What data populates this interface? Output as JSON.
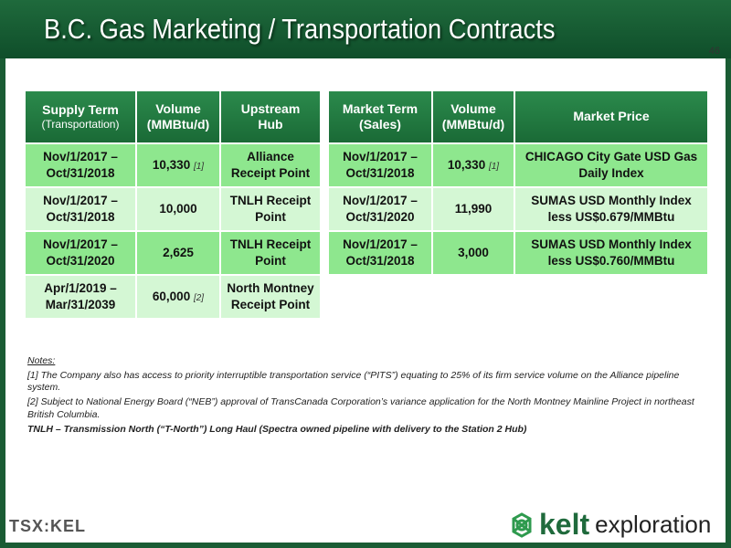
{
  "header": {
    "title": "B.C. Gas Marketing / Transportation Contracts",
    "page_number": "46"
  },
  "supply_table": {
    "headers": [
      {
        "main": "Supply Term",
        "sub": "(Transportation)"
      },
      {
        "main": "Volume",
        "sub": "(MMBtu/d)"
      },
      {
        "main": "Upstream",
        "sub": "Hub"
      }
    ],
    "rows": [
      {
        "term": "Nov/1/2017 – Oct/31/2018",
        "volume": "10,330",
        "note": "[1]",
        "hub": "Alliance Receipt Point"
      },
      {
        "term": "Nov/1/2017 – Oct/31/2018",
        "volume": "10,000",
        "note": "",
        "hub": "TNLH Receipt Point"
      },
      {
        "term": "Nov/1/2017 – Oct/31/2020",
        "volume": "2,625",
        "note": "",
        "hub": "TNLH Receipt Point"
      },
      {
        "term": "Apr/1/2019 – Mar/31/2039",
        "volume": "60,000",
        "note": "[2]",
        "hub": "North Montney Receipt Point"
      }
    ]
  },
  "market_table": {
    "headers": [
      {
        "main": "Market Term",
        "sub": "(Sales)"
      },
      {
        "main": "Volume",
        "sub": "(MMBtu/d)"
      },
      {
        "main": "Market Price",
        "sub": ""
      }
    ],
    "rows": [
      {
        "term": "Nov/1/2017 – Oct/31/2018",
        "volume": "10,330",
        "note": "[1]",
        "price": "CHICAGO City Gate USD Gas Daily Index"
      },
      {
        "term": "Nov/1/2017 – Oct/31/2020",
        "volume": "11,990",
        "note": "",
        "price": "SUMAS USD Monthly Index less US$0.679/MMBtu"
      },
      {
        "term": "Nov/1/2017 – Oct/31/2018",
        "volume": "3,000",
        "note": "",
        "price": "SUMAS USD Monthly Index less US$0.760/MMBtu"
      }
    ]
  },
  "notes": {
    "heading": "Notes:",
    "note1": "[1] The Company also has access to priority interruptible transportation service (“PITS”) equating to 25% of its firm service volume on the Alliance pipeline system.",
    "note2": "[2] Subject to National Energy Board (“NEB”) approval of TransCanada Corporation’s variance application for the North Montney Mainline Project in northeast British Columbia.",
    "tnlh": "TNLH – Transmission North (“T-North”) Long Haul (Spectra owned pipeline with delivery to the Station 2 Hub)"
  },
  "footer": {
    "ticker": "TSX:KEL",
    "logo_name": "kelt",
    "logo_sub": "exploration"
  },
  "colors": {
    "brand_green": "#1f6a3c",
    "row_dark": "#8ee78e",
    "row_light": "#d4f7d4"
  }
}
